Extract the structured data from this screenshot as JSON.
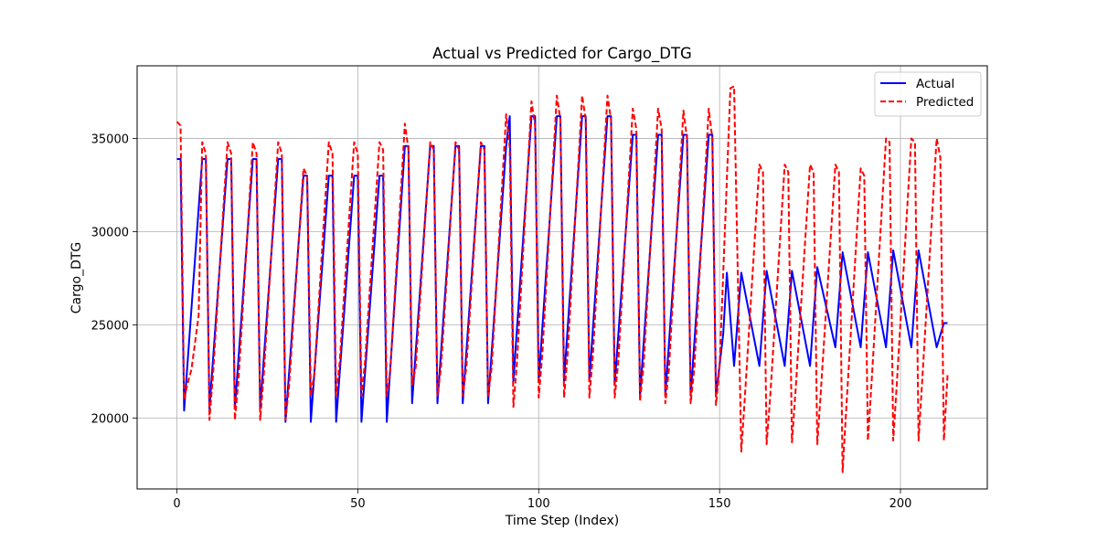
{
  "chart_data": {
    "type": "line",
    "title": "Actual vs Predicted for Cargo_DTG",
    "xlabel": "Time Step (Index)",
    "ylabel": "Cargo_DTG",
    "xlim": [
      -11,
      224
    ],
    "ylim": [
      16200,
      38900
    ],
    "xticks": [
      0,
      50,
      100,
      150,
      200
    ],
    "yticks": [
      20000,
      25000,
      30000,
      35000
    ],
    "grid": true,
    "legend_position": "top-right",
    "series": [
      {
        "name": "Actual",
        "color": "#0000ff",
        "style": "solid",
        "x": [
          0,
          1,
          2,
          7,
          8,
          9,
          14,
          15,
          16,
          21,
          22,
          23,
          28,
          29,
          30,
          35,
          36,
          37,
          42,
          43,
          44,
          49,
          50,
          51,
          56,
          57,
          58,
          63,
          64,
          65,
          70,
          71,
          72,
          77,
          78,
          79,
          84,
          85,
          86,
          91,
          92,
          93,
          98,
          99,
          100,
          105,
          106,
          107,
          112,
          113,
          114,
          119,
          120,
          121,
          126,
          127,
          128,
          133,
          134,
          135,
          140,
          141,
          142,
          147,
          148,
          149,
          151,
          152,
          154,
          156,
          161,
          163,
          168,
          170,
          175,
          177,
          182,
          184,
          189,
          191,
          196,
          198,
          203,
          205,
          210,
          212,
          213
        ],
        "y": [
          33900,
          33900,
          20400,
          33900,
          33900,
          20500,
          33900,
          33900,
          20500,
          33900,
          33900,
          20500,
          33900,
          33900,
          19800,
          33000,
          33000,
          19800,
          33000,
          33000,
          19800,
          33000,
          33000,
          19800,
          33000,
          33000,
          19800,
          34600,
          34600,
          20800,
          34600,
          34600,
          20800,
          34600,
          34600,
          20800,
          34600,
          34600,
          20800,
          34600,
          36200,
          22000,
          36200,
          36200,
          22000,
          36200,
          36200,
          22000,
          36200,
          36200,
          22000,
          36200,
          36200,
          21800,
          35200,
          35200,
          21200,
          35200,
          35200,
          21200,
          35200,
          35200,
          21200,
          35200,
          35200,
          21200,
          24500,
          27800,
          22800,
          27800,
          22800,
          27900,
          22800,
          27900,
          22800,
          28100,
          23800,
          28900,
          23800,
          28900,
          23800,
          29000,
          23800,
          29000,
          23800,
          25100,
          25100
        ]
      },
      {
        "name": "Predicted",
        "color": "#ff0000",
        "style": "dashed",
        "x": [
          0,
          1,
          2,
          3,
          4,
          6,
          7,
          8,
          9,
          10,
          14,
          15,
          16,
          17,
          21,
          22,
          23,
          24,
          28,
          29,
          30,
          31,
          35,
          36,
          37,
          38,
          42,
          43,
          44,
          45,
          49,
          50,
          51,
          52,
          56,
          57,
          58,
          59,
          63,
          64,
          65,
          66,
          70,
          71,
          72,
          73,
          77,
          78,
          79,
          80,
          84,
          85,
          86,
          87,
          91,
          92,
          93,
          94,
          98,
          99,
          100,
          101,
          105,
          106,
          107,
          108,
          112,
          113,
          114,
          115,
          119,
          120,
          121,
          122,
          126,
          127,
          128,
          129,
          133,
          134,
          135,
          136,
          140,
          141,
          142,
          143,
          147,
          148,
          149,
          150,
          153,
          154,
          156,
          157,
          161,
          162,
          163,
          164,
          168,
          169,
          170,
          171,
          175,
          176,
          177,
          178,
          182,
          183,
          184,
          185,
          189,
          190,
          191,
          192,
          196,
          197,
          198,
          199,
          203,
          204,
          205,
          206,
          210,
          211,
          212,
          213
        ],
        "y": [
          35900,
          35700,
          21000,
          21900,
          22600,
          25500,
          34800,
          34200,
          19900,
          22400,
          34800,
          34200,
          19900,
          22000,
          34800,
          34200,
          19900,
          22300,
          34800,
          34200,
          19900,
          21700,
          33400,
          33000,
          21200,
          22400,
          34800,
          34200,
          21200,
          23000,
          34800,
          34200,
          21200,
          23000,
          34800,
          34400,
          21200,
          22600,
          35800,
          34400,
          21800,
          22700,
          34800,
          34400,
          21200,
          22700,
          34800,
          34400,
          21200,
          22700,
          34800,
          34400,
          21200,
          22700,
          36300,
          34500,
          20600,
          23000,
          37000,
          35700,
          21100,
          23400,
          37300,
          36000,
          21100,
          23400,
          37300,
          36000,
          21100,
          23400,
          37300,
          36000,
          21100,
          23000,
          36600,
          35500,
          20900,
          22800,
          36600,
          35500,
          20800,
          22600,
          36500,
          35000,
          20800,
          22600,
          36600,
          35000,
          20700,
          22700,
          37700,
          37800,
          18200,
          21200,
          33600,
          33200,
          18600,
          21200,
          33600,
          33200,
          18700,
          21500,
          33600,
          33200,
          18600,
          21500,
          33600,
          33200,
          17100,
          20500,
          33400,
          33000,
          18800,
          21900,
          35000,
          34800,
          18800,
          21900,
          35000,
          34800,
          18800,
          22000,
          35000,
          34000,
          18800,
          22300
        ]
      }
    ]
  }
}
